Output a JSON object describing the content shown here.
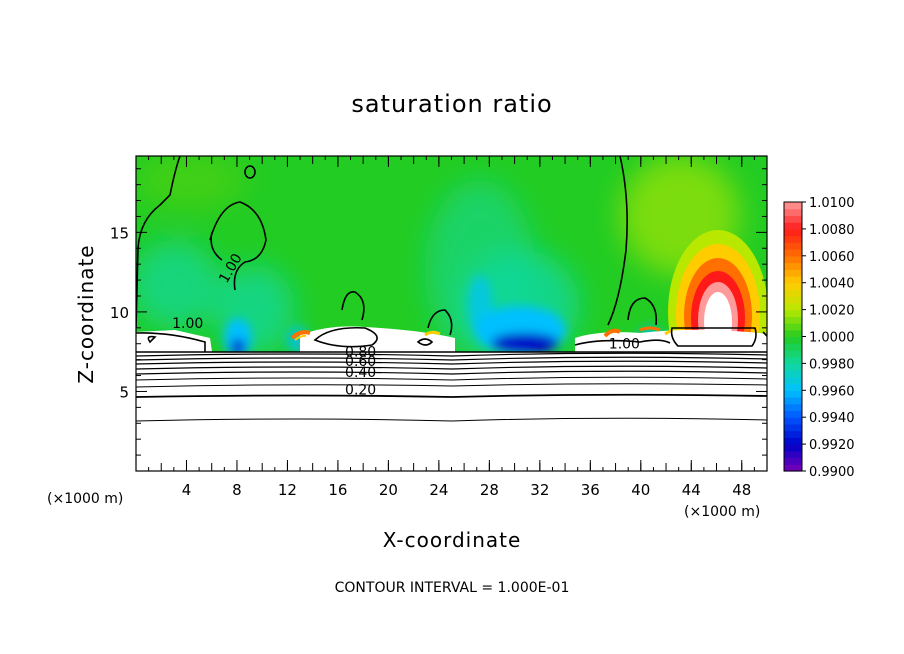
{
  "chart_data": {
    "type": "heatmap",
    "title": "saturation ratio",
    "xlabel": "X-coordinate",
    "ylabel": "Z-coordinate",
    "x_units": "(×1000 m)",
    "y_units": "(×1000 m)",
    "xlim": [
      0,
      50
    ],
    "ylim": [
      0,
      19.8
    ],
    "xticks": [
      4,
      8,
      12,
      16,
      20,
      24,
      28,
      32,
      36,
      40,
      44,
      48
    ],
    "yticks": [
      5,
      10,
      15
    ],
    "colorbar": {
      "min": 0.99,
      "max": 1.01,
      "labels": [
        "1.0100",
        "1.0080",
        "1.0060",
        "1.0040",
        "1.0020",
        "1.0000",
        "0.9980",
        "0.9960",
        "0.9940",
        "0.9920",
        "0.9900"
      ],
      "colors": [
        "#ff9a9a",
        "#ff1a1a",
        "#ff7000",
        "#ffcc00",
        "#b8e800",
        "#22cc22",
        "#10d8a0",
        "#00c0ff",
        "#0055ff",
        "#0000c8",
        "#7a00b8"
      ]
    },
    "contour_labels": [
      {
        "text": "1.00",
        "x": 7.8,
        "z": 12.6
      },
      {
        "text": "1.00",
        "x": 4.1,
        "z": 9.0
      },
      {
        "text": "1.00",
        "x": 38.7,
        "z": 7.7
      },
      {
        "text": "0.80",
        "x": 17.8,
        "z": 7.2
      },
      {
        "text": "0.60",
        "x": 17.8,
        "z": 6.6
      },
      {
        "text": "0.40",
        "x": 17.8,
        "z": 5.9
      },
      {
        "text": "0.20",
        "x": 17.8,
        "z": 4.8
      }
    ],
    "contour_interval_note": "CONTOUR INTERVAL = 1.000E-01"
  }
}
